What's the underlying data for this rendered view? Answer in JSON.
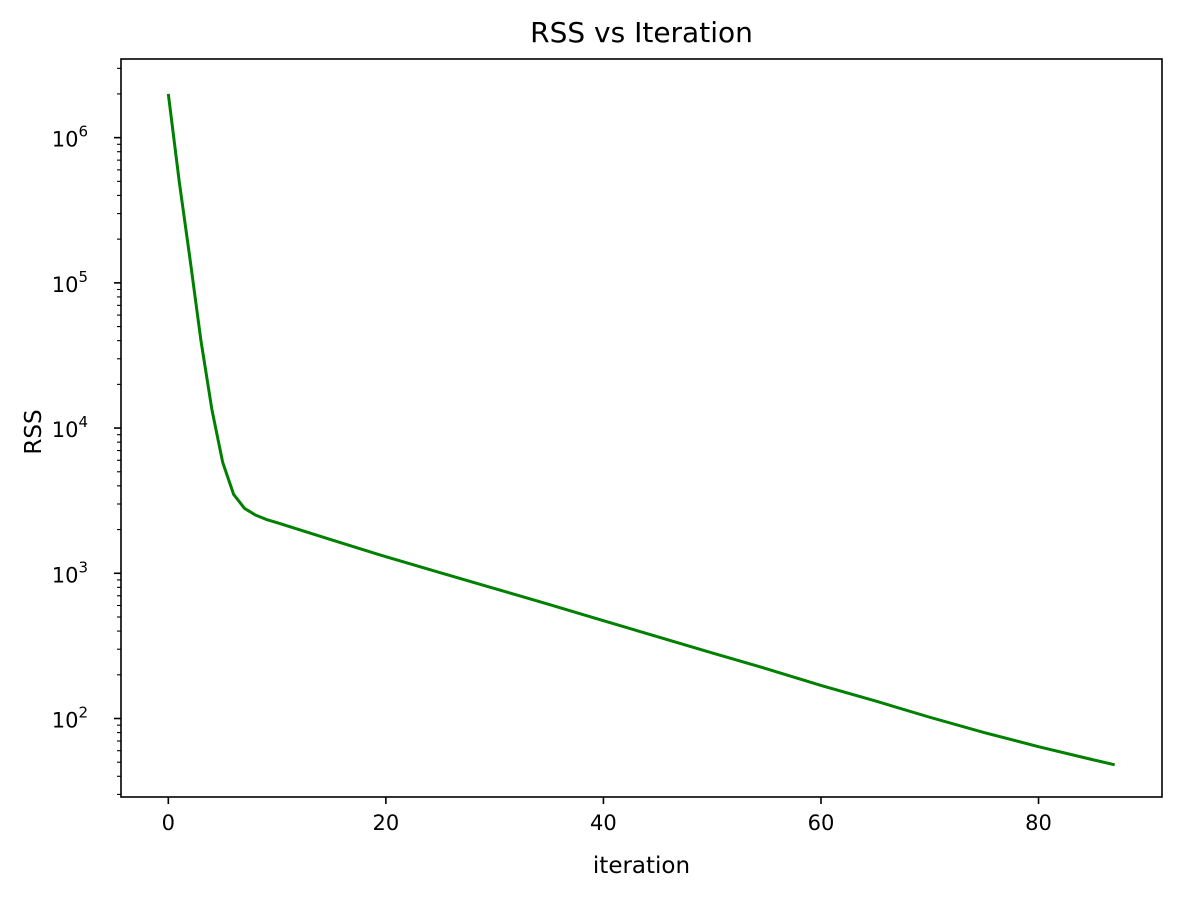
{
  "chart_data": {
    "type": "line",
    "title": "RSS vs Iteration",
    "xlabel": "iteration",
    "ylabel": "RSS",
    "x_scale": "linear",
    "y_scale": "log",
    "xlim": [
      -4.35,
      91.35
    ],
    "ylim": [
      28.8,
      3480000
    ],
    "grid": false,
    "x_ticks": [
      0,
      20,
      40,
      60,
      80
    ],
    "y_ticks": [
      {
        "value": 100,
        "base": "10",
        "exp": "2"
      },
      {
        "value": 1000,
        "base": "10",
        "exp": "3"
      },
      {
        "value": 10000,
        "base": "10",
        "exp": "4"
      },
      {
        "value": 100000,
        "base": "10",
        "exp": "5"
      },
      {
        "value": 1000000,
        "base": "10",
        "exp": "6"
      }
    ],
    "series": [
      {
        "color": "#008000",
        "x": [
          0,
          1,
          2,
          3,
          4,
          5,
          6,
          7,
          8,
          9,
          10,
          15,
          20,
          25,
          30,
          35,
          40,
          45,
          50,
          55,
          60,
          65,
          70,
          75,
          80,
          85,
          87
        ],
        "y": [
          2000000,
          500000,
          145000,
          40000,
          13500,
          5800,
          3500,
          2800,
          2520,
          2350,
          2230,
          1700,
          1300,
          1010,
          785,
          610,
          472,
          365,
          283,
          220,
          169,
          132,
          102,
          80,
          64,
          52,
          48
        ]
      }
    ]
  }
}
